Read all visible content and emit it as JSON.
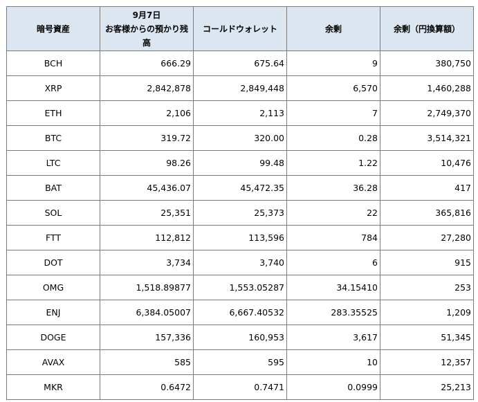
{
  "table": {
    "headers": [
      {
        "lines": [
          "暗号資産"
        ]
      },
      {
        "lines": [
          "9月7日",
          "お客様からの預かり残高"
        ]
      },
      {
        "lines": [
          "コールドウォレット"
        ]
      },
      {
        "lines": [
          "余剰"
        ]
      },
      {
        "lines": [
          "余剰（円換算額）"
        ]
      }
    ],
    "rows": [
      [
        "BCH",
        "666.29",
        "675.64",
        "9",
        "380,750"
      ],
      [
        "XRP",
        "2,842,878",
        "2,849,448",
        "6,570",
        "1,460,288"
      ],
      [
        "ETH",
        "2,106",
        "2,113",
        "7",
        "2,749,370"
      ],
      [
        "BTC",
        "319.72",
        "320.00",
        "0.28",
        "3,514,321"
      ],
      [
        "LTC",
        "98.26",
        "99.48",
        "1.22",
        "10,476"
      ],
      [
        "BAT",
        "45,436.07",
        "45,472.35",
        "36.28",
        "417"
      ],
      [
        "SOL",
        "25,351",
        "25,373",
        "22",
        "365,816"
      ],
      [
        "FTT",
        "112,812",
        "113,596",
        "784",
        "27,280"
      ],
      [
        "DOT",
        "3,734",
        "3,740",
        "6",
        "915"
      ],
      [
        "OMG",
        "1,518.89877",
        "1,553.05287",
        "34.15410",
        "253"
      ],
      [
        "ENJ",
        "6,384.05007",
        "6,667.40532",
        "283.35525",
        "1,209"
      ],
      [
        "DOGE",
        "157,336",
        "160,953",
        "3,617",
        "51,345"
      ],
      [
        "AVAX",
        "585",
        "595",
        "10",
        "12,357"
      ],
      [
        "MKR",
        "0.6472",
        "0.7471",
        "0.0999",
        "25,213"
      ]
    ]
  },
  "colors": {
    "header_background": "#dce6f1",
    "border": "#7a7a7a",
    "text": "#000000"
  }
}
